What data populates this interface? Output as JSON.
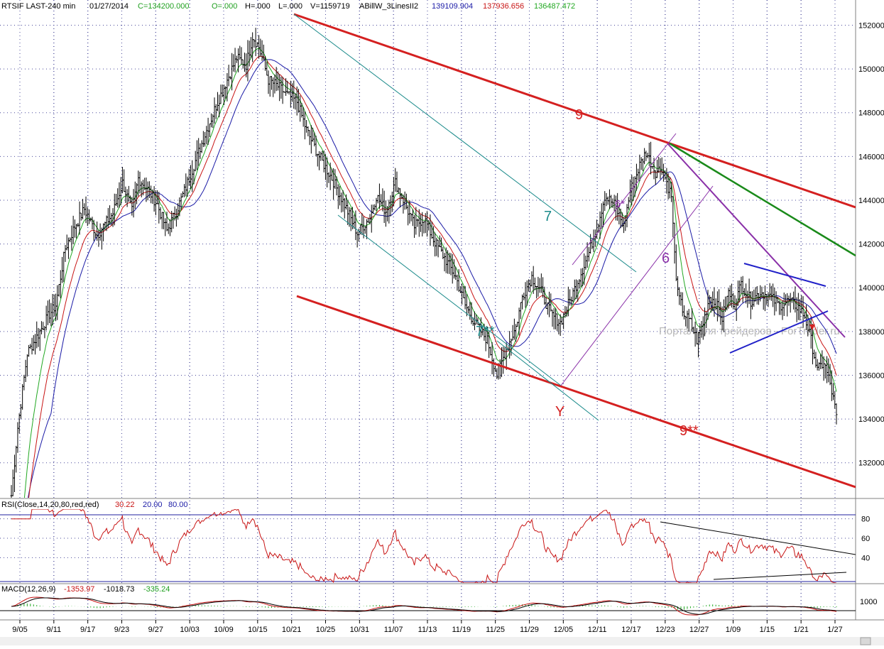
{
  "header": {
    "symbol": "RTSIF LAST-240 min",
    "date": "01/27/2014",
    "close": "C=134200.000",
    "open": "O=.000",
    "high": "H=.000",
    "low": "L=.000",
    "volume": "V=1159719",
    "indicator": "ABillW_3LinesII2",
    "ma_blue": "139109.904",
    "ma_red": "137936.656",
    "ma_green": "136487.472"
  },
  "colors": {
    "price": "#000000",
    "ma_blue": "#1a1aa6",
    "ma_red": "#c81414",
    "ma_green": "#22a822",
    "channel_red": "#d42020",
    "cyan": "#1a8a8a",
    "purple": "#8a30a8",
    "dark_green": "#1a8a1a",
    "triangle": "#2020c8",
    "grid": "#4a4a9a"
  },
  "watermark": "Портал для трейдеров - ForTrader.ru",
  "annotations": {
    "w9": "9",
    "w9b": "9**",
    "w7": "7",
    "w7b": "7**",
    "w6": "6",
    "w6s": "6*",
    "wY": "Y"
  },
  "rsi_panel": {
    "label": "RSI(Close,14,20,80,red,red)",
    "value": "30.22",
    "low": "20.00",
    "high": "80.00"
  },
  "macd_panel": {
    "label": "MACD(12,26,9)",
    "v1": "-1353.97",
    "v2": "-1018.73",
    "v3": "-335.24"
  },
  "chart_data": [
    {
      "type": "line",
      "panel": "price",
      "ylim": [
        130400,
        152600
      ],
      "yticks": [
        "152000",
        "150000",
        "148000",
        "146000",
        "144000",
        "142000",
        "140000",
        "138000",
        "136000",
        "134000",
        "132000"
      ],
      "xticks": [
        "9/05",
        "9/11",
        "9/17",
        "9/23",
        "9/27",
        "10/03",
        "10/09",
        "10/15",
        "10/21",
        "10/25",
        "10/31",
        "11/07",
        "11/13",
        "11/19",
        "11/25",
        "11/29",
        "12/05",
        "12/11",
        "12/17",
        "12/23",
        "12/27",
        "1/09",
        "1/15",
        "1/21",
        "1/27"
      ],
      "price_anchors": [
        [
          0,
          130500
        ],
        [
          4,
          133600
        ],
        [
          10,
          137000
        ],
        [
          18,
          138000
        ],
        [
          24,
          138800
        ],
        [
          28,
          139200
        ],
        [
          34,
          141800
        ],
        [
          40,
          142800
        ],
        [
          46,
          143600
        ],
        [
          54,
          142400
        ],
        [
          60,
          143000
        ],
        [
          64,
          143400
        ],
        [
          70,
          144800
        ],
        [
          76,
          143500
        ],
        [
          80,
          145000
        ],
        [
          86,
          144500
        ],
        [
          92,
          143800
        ],
        [
          98,
          142600
        ],
        [
          104,
          143500
        ],
        [
          110,
          144600
        ],
        [
          116,
          145800
        ],
        [
          122,
          147000
        ],
        [
          130,
          148500
        ],
        [
          136,
          149500
        ],
        [
          142,
          150500
        ],
        [
          148,
          150200
        ],
        [
          152,
          151500
        ],
        [
          156,
          151000
        ],
        [
          162,
          149500
        ],
        [
          168,
          149200
        ],
        [
          174,
          148800
        ],
        [
          180,
          148500
        ],
        [
          186,
          147200
        ],
        [
          194,
          146000
        ],
        [
          202,
          145000
        ],
        [
          210,
          143800
        ],
        [
          218,
          142500
        ],
        [
          226,
          143200
        ],
        [
          230,
          144200
        ],
        [
          236,
          143500
        ],
        [
          242,
          144800
        ],
        [
          246,
          144200
        ],
        [
          254,
          142800
        ],
        [
          260,
          143200
        ],
        [
          266,
          142200
        ],
        [
          272,
          141500
        ],
        [
          280,
          140500
        ],
        [
          286,
          139200
        ],
        [
          292,
          138400
        ],
        [
          300,
          137600
        ],
        [
          306,
          136000
        ],
        [
          312,
          137200
        ],
        [
          318,
          138200
        ],
        [
          322,
          139600
        ],
        [
          328,
          140500
        ],
        [
          334,
          139800
        ],
        [
          340,
          138800
        ],
        [
          346,
          138400
        ],
        [
          352,
          139400
        ],
        [
          358,
          140500
        ],
        [
          364,
          141600
        ],
        [
          370,
          143000
        ],
        [
          374,
          144200
        ],
        [
          380,
          143800
        ],
        [
          386,
          142800
        ],
        [
          390,
          144400
        ],
        [
          396,
          145600
        ],
        [
          400,
          146200
        ],
        [
          406,
          145300
        ],
        [
          410,
          145500
        ],
        [
          414,
          144600
        ],
        [
          416,
          144200
        ],
        [
          418,
          141500
        ],
        [
          420,
          139700
        ],
        [
          424,
          138800
        ],
        [
          428,
          138400
        ],
        [
          432,
          137600
        ],
        [
          436,
          138400
        ],
        [
          440,
          139600
        ],
        [
          444,
          139300
        ],
        [
          448,
          138600
        ],
        [
          452,
          139800
        ],
        [
          456,
          139200
        ],
        [
          460,
          140200
        ],
        [
          466,
          139400
        ],
        [
          472,
          139800
        ],
        [
          478,
          139600
        ],
        [
          484,
          139200
        ],
        [
          490,
          139400
        ],
        [
          496,
          139100
        ],
        [
          500,
          138700
        ],
        [
          504,
          137600
        ],
        [
          508,
          136200
        ],
        [
          512,
          136600
        ],
        [
          516,
          135600
        ],
        [
          520,
          134200
        ]
      ],
      "series": [
        {
          "name": "ABillW_3LinesII2",
          "value": 139109.904
        },
        {
          "name": "ABillW_3LinesII2",
          "value": 137936.656
        },
        {
          "name": "ABillW_3LinesII2",
          "value": 136487.472
        }
      ]
    },
    {
      "type": "line",
      "panel": "rsi",
      "ylim": [
        14,
        90
      ],
      "yticks": [
        "80",
        "60",
        "40"
      ],
      "levels": [
        20,
        80
      ],
      "last": 30.22
    },
    {
      "type": "line",
      "panel": "macd",
      "ylim": [
        -2500,
        2500
      ],
      "yticks": [
        "1000"
      ],
      "last": [
        -1353.97,
        -1018.73,
        -335.24
      ]
    }
  ]
}
